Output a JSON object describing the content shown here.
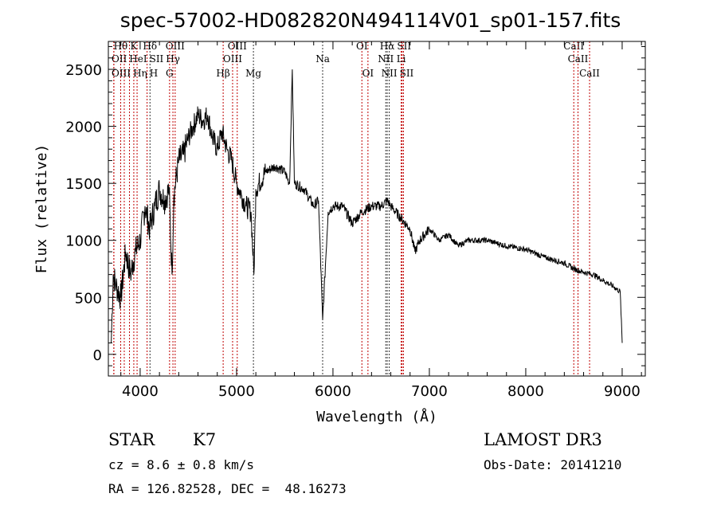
{
  "chart_data": {
    "type": "line",
    "title": "spec-57002-HD082820N494114V01_sp01-157.fits",
    "xlabel": "Wavelength (Å)",
    "ylabel": "Flux (relative)",
    "xlim": [
      3670,
      9240
    ],
    "ylim": [
      -190,
      2745
    ],
    "xticks": [
      4000,
      5000,
      6000,
      7000,
      8000,
      9000
    ],
    "yticks": [
      0,
      500,
      1000,
      1500,
      2000,
      2500
    ],
    "grid": false,
    "series": [
      {
        "name": "spectrum",
        "x": [
          3700,
          3720,
          3750,
          3800,
          3850,
          3900,
          3950,
          4000,
          4050,
          4100,
          4150,
          4200,
          4250,
          4300,
          4330,
          4350,
          4400,
          4450,
          4500,
          4550,
          4600,
          4650,
          4700,
          4750,
          4800,
          4850,
          4900,
          4950,
          5000,
          5050,
          5100,
          5150,
          5180,
          5200,
          5300,
          5400,
          5500,
          5550,
          5578,
          5600,
          5700,
          5800,
          5850,
          5893,
          5950,
          6000,
          6100,
          6200,
          6300,
          6400,
          6500,
          6563,
          6600,
          6700,
          6800,
          6850,
          6900,
          7000,
          7100,
          7200,
          7300,
          7400,
          7600,
          7800,
          8000,
          8200,
          8400,
          8500,
          8600,
          8700,
          8800,
          8900,
          8980,
          9000
        ],
        "y": [
          100,
          700,
          600,
          500,
          900,
          700,
          900,
          1000,
          1300,
          1100,
          1300,
          1450,
          1350,
          1450,
          700,
          1400,
          1700,
          1750,
          1900,
          2000,
          2100,
          2050,
          2100,
          1900,
          1800,
          1950,
          1800,
          1700,
          1500,
          1400,
          1300,
          1250,
          700,
          1450,
          1600,
          1650,
          1600,
          1500,
          2500,
          1500,
          1450,
          1300,
          1350,
          300,
          1250,
          1300,
          1300,
          1150,
          1250,
          1300,
          1300,
          1350,
          1300,
          1200,
          1100,
          900,
          1000,
          1100,
          1000,
          1050,
          950,
          1000,
          1000,
          950,
          920,
          850,
          800,
          750,
          720,
          700,
          650,
          600,
          550,
          100
        ]
      }
    ],
    "line_markers": [
      {
        "label": "Hθ",
        "wl": 3798,
        "row": 0,
        "color": "#c00000"
      },
      {
        "label": "K",
        "wl": 3934,
        "row": 0,
        "color": "#c00000"
      },
      {
        "label": "Hδ",
        "wl": 4102,
        "row": 0,
        "color": "#333333"
      },
      {
        "label": "OIII",
        "wl": 4363,
        "row": 0,
        "color": "#c00000"
      },
      {
        "label": "OIII",
        "wl": 5007,
        "row": 0,
        "color": "#c00000"
      },
      {
        "label": "OI",
        "wl": 6300,
        "row": 0,
        "color": "#c00000"
      },
      {
        "label": "Hα",
        "wl": 6563,
        "row": 0,
        "color": "#333333"
      },
      {
        "label": "SII",
        "wl": 6717,
        "row": 0,
        "color": "#c00000"
      },
      {
        "label": "CaII",
        "wl": 8498,
        "row": 0,
        "color": "#c00000"
      },
      {
        "label": "OII",
        "wl": 3727,
        "row": 1,
        "color": "#c00000"
      },
      {
        "label": "HeI",
        "wl": 3889,
        "row": 1,
        "color": "#c00000"
      },
      {
        "label": "SII",
        "wl": 4072,
        "row": 1,
        "color": "#c00000"
      },
      {
        "label": "Hγ",
        "wl": 4340,
        "row": 1,
        "color": "#c00000"
      },
      {
        "label": "OIII",
        "wl": 4959,
        "row": 1,
        "color": "#c00000"
      },
      {
        "label": "Na",
        "wl": 5893,
        "row": 1,
        "color": "#333333"
      },
      {
        "label": "NII",
        "wl": 6548,
        "row": 1,
        "color": "#333333"
      },
      {
        "label": "Li",
        "wl": 6708,
        "row": 1,
        "color": "#c00000"
      },
      {
        "label": "CaII",
        "wl": 8542,
        "row": 1,
        "color": "#c00000"
      },
      {
        "label": "OIII",
        "wl": 3727,
        "row": 2,
        "color": "#c00000"
      },
      {
        "label": "Hη",
        "wl": 3835,
        "row": 2,
        "color": "#c00000"
      },
      {
        "label": "H",
        "wl": 3968,
        "row": 2,
        "color": "#c00000"
      },
      {
        "label": "G",
        "wl": 4305,
        "row": 2,
        "color": "#c00000"
      },
      {
        "label": "Hβ",
        "wl": 4861,
        "row": 2,
        "color": "#c00000"
      },
      {
        "label": "Mg",
        "wl": 5175,
        "row": 2,
        "color": "#333333"
      },
      {
        "label": "OI",
        "wl": 6363,
        "row": 2,
        "color": "#c00000"
      },
      {
        "label": "NII",
        "wl": 6584,
        "row": 2,
        "color": "#333333"
      },
      {
        "label": "SII",
        "wl": 6731,
        "row": 2,
        "color": "#c00000"
      },
      {
        "label": "CaII",
        "wl": 8662,
        "row": 2,
        "color": "#c00000"
      }
    ]
  },
  "info": {
    "class_label": "STAR",
    "subclass": "K7",
    "survey": "LAMOST DR3",
    "cz": "cz = 8.6 ± 0.8 km/s",
    "obs_date": "Obs-Date: 20141210",
    "coords": "RA = 126.82528, DEC =  48.16273"
  }
}
